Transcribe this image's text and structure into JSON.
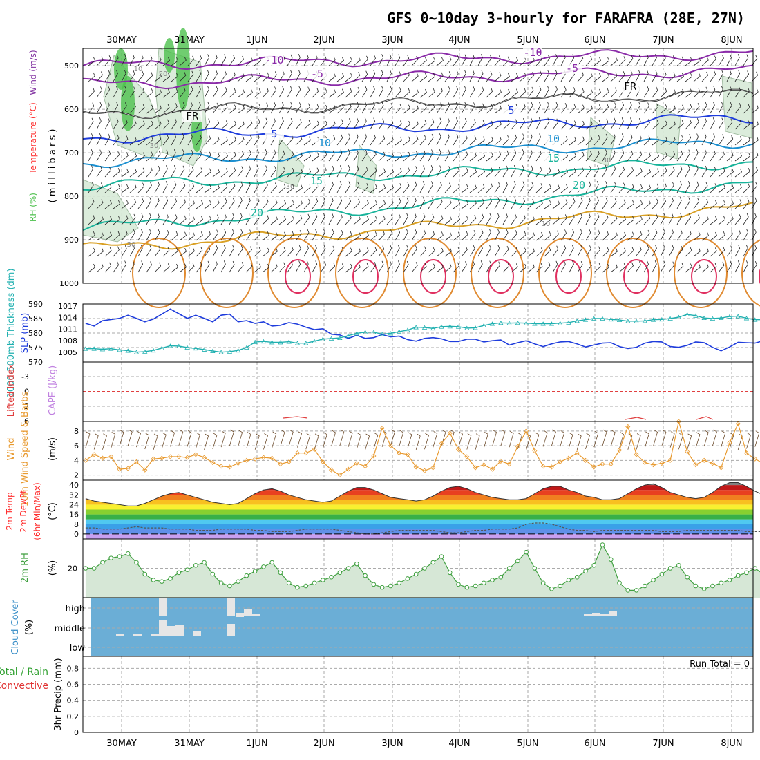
{
  "title": "GFS 0~10day 3-hourly for FARAFRA (28E, 27N)",
  "dates": [
    "30MAY",
    "31MAY",
    "1JUN",
    "2JUN",
    "3JUN",
    "4JUN",
    "5JUN",
    "6JUN",
    "7JUN",
    "8JUN"
  ],
  "colors": {
    "rh_green": "#4cc04c",
    "temp_red": "#ff3030",
    "wind_purple": "#8030a0",
    "thickness_cyan": "#20b0b0",
    "slp_blue": "#1e3cdc",
    "lifted_red": "#e04040",
    "cape_purple": "#c080e0",
    "wind10_orange": "#e89a30",
    "rh2m_green": "#40a040",
    "cloud_blue": "#6baed6",
    "precip_green": "#30a030",
    "precip_red": "#e03030"
  },
  "chart_data": [
    {
      "panel": "upper-air",
      "type": "contour",
      "ylabel_parts": [
        "RH (%)",
        "Temperature (°C)",
        "Wind (m/s)"
      ],
      "ylabel_units": "( m i l l i b a r s )",
      "yticks": [
        500,
        600,
        700,
        800,
        900,
        1000
      ],
      "ylim": [
        460,
        1000
      ],
      "y_reversed": true,
      "temp_labels": [
        "-10",
        "-5",
        "FR",
        "5",
        "10",
        "15",
        "20",
        "-10",
        "-5",
        "FR",
        "5",
        "10",
        "15",
        "20"
      ],
      "rh_labels": [
        "10",
        "30",
        "50",
        "30",
        "30",
        "30",
        "10"
      ],
      "isotherms_levels": [
        -10,
        -5,
        0,
        5,
        10,
        15,
        20
      ]
    },
    {
      "panel": "thickness-slp",
      "type": "line",
      "ylabel_left": "1000-500mb Thickness (dm)",
      "ylabel_right": "SLP (mb)",
      "yticks_left": [
        570,
        575,
        580,
        585,
        590
      ],
      "yticks_right": [
        1005,
        1008,
        1011,
        1014,
        1017
      ],
      "series": [
        {
          "name": "SLP (mb)",
          "values": [
            1012.5,
            1011.8,
            1013.2,
            1013.5,
            1013.8,
            1014.6,
            1013.8,
            1012.9,
            1013.6,
            1014.9,
            1016.2,
            1015.0,
            1013.8,
            1014.6,
            1013.8,
            1012.9,
            1014.6,
            1014.9,
            1012.9,
            1013.2,
            1012.5,
            1012.9,
            1011.8,
            1012.0,
            1012.7,
            1012.3,
            1011.5,
            1010.9,
            1011.1,
            1009.7,
            1009.5,
            1008.6,
            1009.4,
            1008.6,
            1008.8,
            1009.6,
            1009.0,
            1009.2,
            1008.3,
            1007.9,
            1008.6,
            1008.8,
            1008.5,
            1007.8,
            1007.8,
            1008.4,
            1008.4,
            1007.7,
            1008.0,
            1008.2,
            1006.9,
            1007.5,
            1008.0,
            1007.2,
            1006.5,
            1007.2,
            1007.7,
            1007.8,
            1007.2,
            1006.4,
            1006.9,
            1007.4,
            1007.5,
            1006.5,
            1006.0,
            1006.3,
            1007.4,
            1007.8,
            1007.7,
            1006.5,
            1006.3,
            1006.8,
            1007.7,
            1007.5,
            1006.3,
            1005.4,
            1006.4,
            1007.6,
            1007.5,
            1007.4,
            1008.0
          ]
        },
        {
          "name": "1000-500mb Thickness (dm)",
          "values": [
            574.6,
            574.6,
            574.4,
            574.6,
            574.2,
            573.9,
            573.4,
            573.6,
            574.0,
            574.8,
            575.6,
            575.5,
            575.0,
            574.7,
            574.3,
            573.8,
            573.4,
            573.6,
            574.0,
            575.0,
            576.9,
            577.1,
            576.8,
            576.8,
            577.0,
            576.5,
            576.5,
            577.2,
            577.9,
            578.1,
            578.3,
            579.1,
            579.9,
            580.3,
            580.3,
            579.6,
            579.9,
            580.5,
            581.0,
            582.0,
            581.9,
            581.6,
            582.2,
            582.3,
            582.2,
            581.7,
            581.8,
            582.6,
            583.2,
            583.5,
            583.4,
            583.5,
            583.4,
            583.2,
            583.2,
            583.2,
            583.4,
            583.6,
            584.2,
            584.6,
            585.0,
            585.0,
            584.7,
            584.5,
            584.1,
            584.1,
            584.2,
            584.6,
            584.7,
            585.0,
            585.5,
            586.4,
            586.0,
            585.2,
            585.0,
            585.2,
            585.7,
            585.8,
            585.1,
            584.6,
            584.6
          ]
        }
      ]
    },
    {
      "panel": "lifted-cape",
      "type": "line",
      "ylabel_left": "Lifted Index",
      "ylabel_right": "CAPE (J/kg)",
      "yticks": [
        "-3",
        "0",
        "3",
        "6"
      ],
      "zero_line": 0,
      "lifted_index_near_bottom_markers": [
        "1.5JUN",
        "6.5JUN",
        "7.6JUN"
      ]
    },
    {
      "panel": "wind10m",
      "type": "line",
      "ylabel_left": "10m Wind Speed & Barbs",
      "ylabel_right": "(m/s)",
      "yticks": [
        2,
        4,
        6,
        8
      ],
      "series": [
        {
          "name": "10m Wind Speed",
          "values": [
            4.0,
            4.8,
            4.3,
            4.5,
            2.8,
            2.9,
            3.8,
            2.7,
            4.2,
            4.3,
            4.5,
            4.5,
            4.4,
            4.8,
            4.4,
            3.7,
            3.2,
            3.1,
            3.6,
            4.0,
            4.2,
            4.4,
            4.3,
            3.5,
            3.8,
            5.0,
            5.0,
            5.5,
            3.8,
            2.7,
            2.0,
            2.8,
            3.6,
            3.2,
            4.6,
            8.4,
            6.0,
            5.0,
            4.8,
            3.1,
            2.6,
            3.0,
            6.3,
            7.7,
            5.5,
            4.5,
            3.0,
            3.4,
            2.8,
            3.9,
            3.5,
            5.9,
            8.0,
            5.3,
            3.2,
            3.1,
            3.8,
            4.3,
            5.0,
            4.0,
            3.1,
            3.5,
            3.5,
            5.4,
            8.6,
            4.8,
            3.7,
            3.4,
            3.6,
            4.0,
            9.3,
            5.2,
            3.4,
            4.0,
            3.6,
            3.0,
            6.4,
            9.0,
            5.0,
            4.2,
            3.6
          ]
        }
      ]
    },
    {
      "panel": "temp2m",
      "type": "area",
      "ylabel_left": "2m Temp 2m DewPt (6hr Min/Max)",
      "ylabel_right": "(°C)",
      "yticks": [
        0,
        8,
        16,
        24,
        32,
        40
      ],
      "ylim": [
        -4,
        44
      ],
      "series": [
        {
          "name": "2m Temp",
          "values": [
            29,
            27,
            26,
            25,
            24,
            23,
            23,
            25,
            28,
            31,
            33,
            34,
            32,
            30,
            28,
            26,
            25,
            24,
            25,
            29,
            33,
            36,
            37,
            35,
            32,
            30,
            28,
            27,
            26,
            27,
            31,
            35,
            38,
            38,
            36,
            33,
            30,
            29,
            28,
            27,
            28,
            31,
            35,
            38,
            39,
            37,
            34,
            32,
            30,
            29,
            28,
            28,
            29,
            33,
            37,
            39,
            39,
            36,
            34,
            31,
            30,
            28,
            28,
            29,
            33,
            37,
            40,
            41,
            38,
            34,
            32,
            30,
            29,
            30,
            34,
            39,
            42,
            42,
            39,
            35,
            32
          ]
        },
        {
          "name": "2m DewPt",
          "values": [
            5,
            5,
            4,
            4,
            4,
            5,
            6,
            5,
            5,
            5,
            4,
            4,
            4,
            3,
            3,
            3,
            4,
            4,
            4,
            4,
            3,
            3,
            2,
            2,
            2,
            3,
            4,
            4,
            4,
            4,
            3,
            2,
            1,
            0,
            0,
            1,
            2,
            3,
            3,
            3,
            3,
            3,
            2,
            1,
            1,
            2,
            3,
            3,
            4,
            4,
            4,
            5,
            8,
            9,
            9,
            8,
            6,
            4,
            3,
            3,
            2,
            3,
            3,
            3,
            3,
            3,
            3,
            3,
            2,
            2,
            2,
            3,
            3,
            3,
            3,
            3,
            3,
            3,
            2,
            2,
            2
          ]
        }
      ]
    },
    {
      "panel": "rh2m",
      "type": "area",
      "ylabel_left": "2m RH",
      "ylabel_right": "(%)",
      "yticks": [
        20
      ],
      "ylim": [
        0,
        40
      ],
      "series": [
        {
          "name": "2m RH",
          "values": [
            20,
            20,
            24,
            27,
            28,
            30,
            24,
            16,
            12,
            11,
            13,
            17,
            19,
            22,
            24,
            16,
            10,
            8,
            11,
            15,
            18,
            21,
            24,
            17,
            10,
            7,
            8,
            10,
            12,
            14,
            17,
            20,
            23,
            15,
            9,
            7,
            8,
            10,
            13,
            16,
            20,
            24,
            28,
            17,
            9,
            7,
            8,
            10,
            12,
            14,
            20,
            25,
            31,
            20,
            10,
            6,
            8,
            12,
            14,
            18,
            22,
            36,
            26,
            10,
            5,
            5,
            8,
            12,
            16,
            20,
            22,
            14,
            8,
            6,
            8,
            10,
            12,
            15,
            17,
            20,
            16
          ]
        }
      ]
    },
    {
      "panel": "cloud",
      "type": "bar",
      "ylabel": "Cloud Cover (%)",
      "yticks": [
        "high",
        "middle",
        "low"
      ]
    },
    {
      "panel": "precip",
      "type": "bar",
      "ylabel_left": "Total / Rain",
      "ylabel_left2": "Convective",
      "ylabel_right": "3hr Precip (mm)",
      "yticks": [
        0,
        0.2,
        0.4,
        0.6,
        0.8
      ],
      "ylim": [
        0,
        0.95
      ],
      "run_total_label": "Run Total = 0",
      "values": []
    }
  ]
}
